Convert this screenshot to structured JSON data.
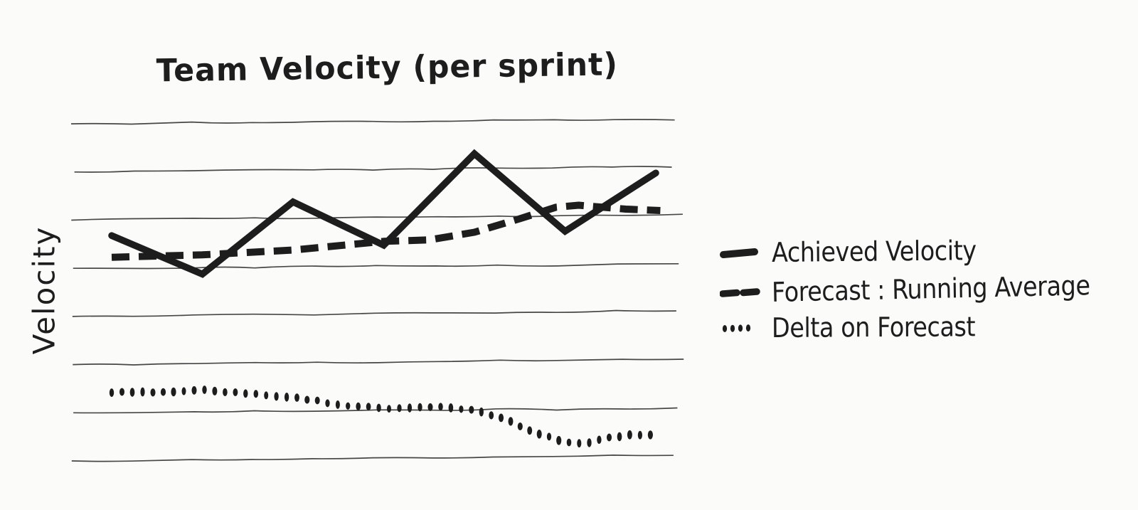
{
  "page": {
    "background": "#fbfbf9",
    "ink": "#1d1d1d",
    "gridline_color": "#2e2e2e"
  },
  "chart_data": {
    "type": "line",
    "title": "Team Velocity (per sprint)",
    "xlabel": "",
    "ylabel": "Velocity",
    "x_axis": {
      "unit": "sprint",
      "range": [
        1,
        7
      ],
      "tick_labels": []
    },
    "y_axis": {
      "tick_labels": [],
      "gridline_count": 8,
      "range": [
        0,
        70
      ],
      "note": "hand-drawn chart; axis has no numeric labels, values estimated in gridline units (1 gridline = 10)"
    },
    "grid": true,
    "legend_position": "right",
    "series": [
      {
        "name": "Achieved Velocity",
        "style": "solid",
        "x": [
          1,
          2,
          3,
          4,
          5,
          6,
          7
        ],
        "values": [
          46.5,
          38.5,
          53.5,
          44.5,
          63.5,
          47.4,
          59.5
        ]
      },
      {
        "name": "Forecast : Running Average",
        "style": "dashed",
        "x": [
          1,
          2,
          3,
          4,
          4.5,
          5,
          5.5,
          5.9,
          6.15,
          6.67,
          7.05
        ],
        "values": [
          42,
          42.5,
          43.5,
          45.3,
          45.6,
          47.2,
          50,
          52.4,
          52.8,
          52,
          51.7
        ]
      },
      {
        "name": "Delta on Forecast",
        "style": "dotted",
        "x": [
          1,
          1.57,
          2.02,
          2.51,
          3.06,
          3.61,
          4.04,
          4.63,
          5.0,
          5.34,
          5.65,
          5.96,
          6.2,
          6.46,
          6.67,
          6.97
        ],
        "values": [
          13.9,
          14.05,
          14.35,
          13.75,
          12.7,
          11.2,
          10.5,
          10.9,
          10.35,
          8.3,
          5.8,
          3.85,
          3.25,
          4.6,
          5.0,
          5.0
        ]
      }
    ]
  }
}
